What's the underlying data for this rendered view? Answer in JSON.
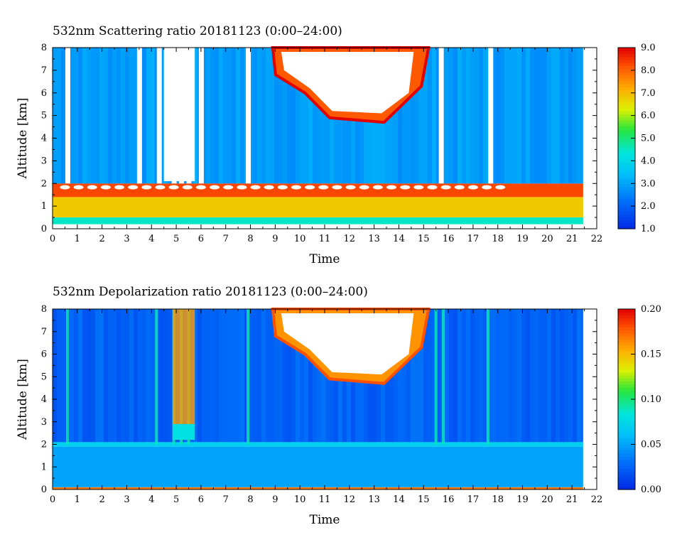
{
  "chart_data": [
    {
      "type": "heatmap",
      "title": "532nm Scattering ratio  20181123 (0:00–24:00)",
      "xlabel": "Time",
      "ylabel": "Altitude [km]",
      "x_ticks": [
        "0",
        "1",
        "2",
        "3",
        "4",
        "5",
        "6",
        "7",
        "8",
        "9",
        "10",
        "11",
        "12",
        "13",
        "14",
        "15",
        "16",
        "17",
        "18",
        "19",
        "20",
        "21",
        "22"
      ],
      "y_ticks": [
        "0",
        "1",
        "2",
        "3",
        "4",
        "5",
        "6",
        "7",
        "8"
      ],
      "xlim": [
        0,
        22
      ],
      "ylim": [
        0,
        8
      ],
      "data_xlim": [
        0,
        21.45
      ],
      "colorbar": {
        "ticks": [
          "1.0",
          "2.0",
          "3.0",
          "4.0",
          "5.0",
          "6.0",
          "7.0",
          "8.0",
          "9.0"
        ],
        "range": [
          1,
          9
        ]
      },
      "layers": [
        {
          "name": "surface layer",
          "y": [
            0.2,
            0.5
          ],
          "value": 4.5
        },
        {
          "name": "boundary layer",
          "y": [
            0.5,
            1.4
          ],
          "value": 6.8
        },
        {
          "name": "boundary layer top",
          "y": [
            1.4,
            2.0
          ],
          "value": 8.3
        },
        {
          "name": "free troposphere",
          "y": [
            2.0,
            8.0
          ],
          "value": 2.9
        }
      ],
      "cloud": {
        "x": [
          8.9,
          15.2
        ],
        "y": [
          4.7,
          8.0
        ],
        "value": "above 9.0"
      },
      "saturated_columns_x": [
        0.6,
        3.5,
        4.3,
        4.9,
        5.2,
        5.5,
        6.0,
        7.9,
        15.7,
        17.7
      ]
    },
    {
      "type": "heatmap",
      "title": "532nm Depolarization ratio  20181123 (0:00–24:00)",
      "xlabel": "Time",
      "ylabel": "Altitude [km]",
      "x_ticks": [
        "0",
        "1",
        "2",
        "3",
        "4",
        "5",
        "6",
        "7",
        "8",
        "9",
        "10",
        "11",
        "12",
        "13",
        "14",
        "15",
        "16",
        "17",
        "18",
        "19",
        "20",
        "21",
        "22"
      ],
      "y_ticks": [
        "0",
        "1",
        "2",
        "3",
        "4",
        "5",
        "6",
        "7",
        "8"
      ],
      "xlim": [
        0,
        22
      ],
      "ylim": [
        0,
        8
      ],
      "data_xlim": [
        0,
        21.45
      ],
      "colorbar": {
        "ticks": [
          "0.00",
          "0.05",
          "0.10",
          "0.15",
          "0.20"
        ],
        "range": [
          0,
          0.2
        ]
      },
      "layers": [
        {
          "name": "surface",
          "y": [
            0.0,
            0.1
          ],
          "value": 0.17
        },
        {
          "name": "boundary layer",
          "y": [
            0.1,
            1.9
          ],
          "value": 0.05
        },
        {
          "name": "layer top",
          "y": [
            1.9,
            2.1
          ],
          "value": 0.07
        },
        {
          "name": "free troposphere",
          "y": [
            2.1,
            8.0
          ],
          "value": 0.025
        }
      ],
      "cloud": {
        "x": [
          8.9,
          15.2
        ],
        "y": [
          4.7,
          8.0
        ],
        "value": 0.18
      },
      "dust_columns_x": [
        0.6,
        4.2,
        4.9,
        5.2,
        5.5,
        7.9,
        15.5,
        15.8,
        17.6
      ]
    }
  ]
}
